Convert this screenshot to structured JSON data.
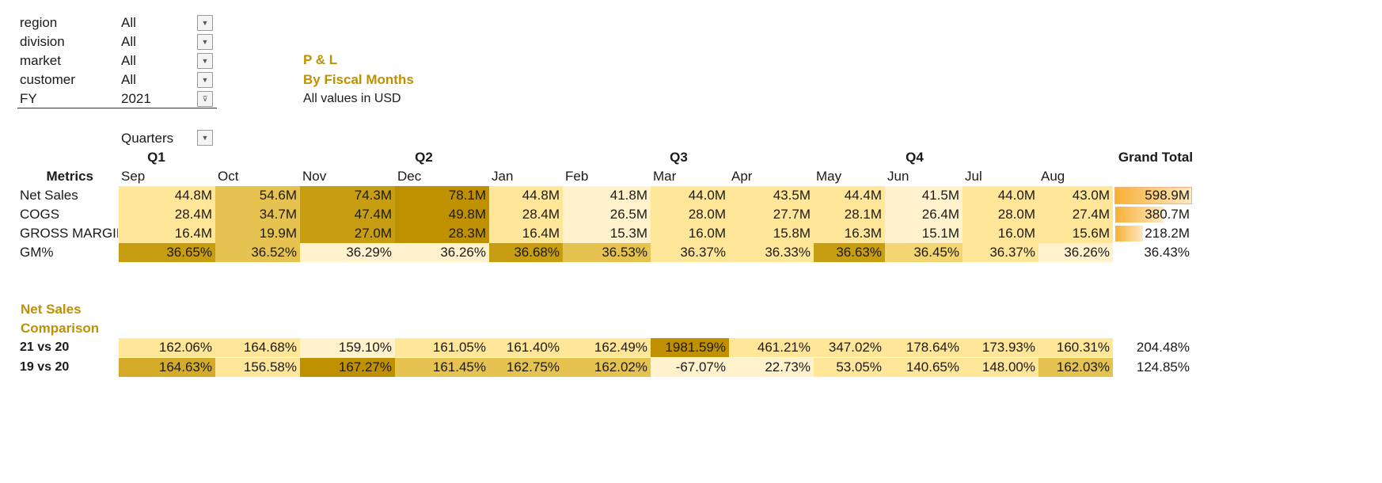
{
  "filters": [
    {
      "label": "region",
      "value": "All",
      "icon": "dropdown-arrow-icon"
    },
    {
      "label": "division",
      "value": "All",
      "icon": "dropdown-arrow-icon"
    },
    {
      "label": "market",
      "value": "All",
      "icon": "dropdown-arrow-icon"
    },
    {
      "label": "customer",
      "value": "All",
      "icon": "dropdown-arrow-icon"
    },
    {
      "label": "FY",
      "value": "2021",
      "icon": "filter-applied-icon"
    }
  ],
  "title": {
    "line1": "P & L",
    "line2": "By Fiscal Months",
    "line3": "All values in USD"
  },
  "pivot": {
    "quarters_field": "Quarters",
    "metrics_header": "Metrics",
    "grand_total_header": "Grand Total",
    "quarters": [
      "Q1",
      "Q2",
      "Q3",
      "Q4"
    ],
    "months": [
      "Sep",
      "Oct",
      "Nov",
      "Dec",
      "Jan",
      "Feb",
      "Mar",
      "Apr",
      "May",
      "Jun",
      "Jul",
      "Aug"
    ],
    "rows": [
      {
        "label": "Net Sales",
        "values": [
          "44.8M",
          "54.6M",
          "74.3M",
          "78.1M",
          "44.8M",
          "41.8M",
          "44.0M",
          "43.5M",
          "44.4M",
          "41.5M",
          "44.0M",
          "43.0M"
        ],
        "total": "598.9M",
        "total_bar": 1.0
      },
      {
        "label": "COGS",
        "values": [
          "28.4M",
          "34.7M",
          "47.4M",
          "49.8M",
          "28.4M",
          "26.5M",
          "28.0M",
          "27.7M",
          "28.1M",
          "26.4M",
          "28.0M",
          "27.4M"
        ],
        "total": "380.7M",
        "total_bar": 0.64
      },
      {
        "label": "GROSS MARGIN",
        "values": [
          "16.4M",
          "19.9M",
          "27.0M",
          "28.3M",
          "16.4M",
          "15.3M",
          "16.0M",
          "15.8M",
          "16.3M",
          "15.1M",
          "16.0M",
          "15.6M"
        ],
        "total": "218.2M",
        "total_bar": 0.36
      },
      {
        "label": "GM%",
        "values": [
          "36.65%",
          "36.52%",
          "36.29%",
          "36.26%",
          "36.68%",
          "36.53%",
          "36.37%",
          "36.33%",
          "36.63%",
          "36.45%",
          "36.37%",
          "36.26%"
        ],
        "total": "36.43%"
      }
    ]
  },
  "comparison": {
    "title_line1": "Net Sales",
    "title_line2": "Comparison",
    "rows": [
      {
        "label": "21 vs 20",
        "values": [
          "162.06%",
          "164.68%",
          "159.10%",
          "161.05%",
          "161.40%",
          "162.49%",
          "1981.59%",
          "461.21%",
          "347.02%",
          "178.64%",
          "173.93%",
          "160.31%"
        ],
        "total": "204.48%"
      },
      {
        "label": "19 vs 20",
        "values": [
          "164.63%",
          "156.58%",
          "167.27%",
          "161.45%",
          "162.75%",
          "162.02%",
          "-67.07%",
          "22.73%",
          "53.05%",
          "140.65%",
          "148.00%",
          "162.03%"
        ],
        "total": "124.85%"
      }
    ]
  },
  "colors": {
    "gold_text": "#bf9000",
    "heat": [
      "#fff2cc",
      "#ffe699",
      "#f3d672",
      "#e6c350",
      "#d4ac2a",
      "#c79d12",
      "#bf9000"
    ]
  },
  "heat_levels": {
    "pivot": [
      [
        1,
        3,
        5,
        6,
        1,
        0,
        1,
        1,
        1,
        0,
        1,
        1
      ],
      [
        1,
        3,
        5,
        6,
        1,
        0,
        1,
        1,
        1,
        0,
        1,
        1
      ],
      [
        1,
        3,
        5,
        6,
        1,
        0,
        1,
        1,
        1,
        0,
        1,
        1
      ],
      [
        5,
        3,
        0,
        0,
        5,
        3,
        1,
        1,
        5,
        2,
        1,
        0
      ]
    ],
    "comparison": [
      [
        1,
        1,
        0,
        1,
        1,
        1,
        6,
        1,
        1,
        1,
        1,
        1
      ],
      [
        4,
        1,
        6,
        3,
        3,
        3,
        0,
        0,
        1,
        1,
        1,
        3
      ]
    ]
  }
}
